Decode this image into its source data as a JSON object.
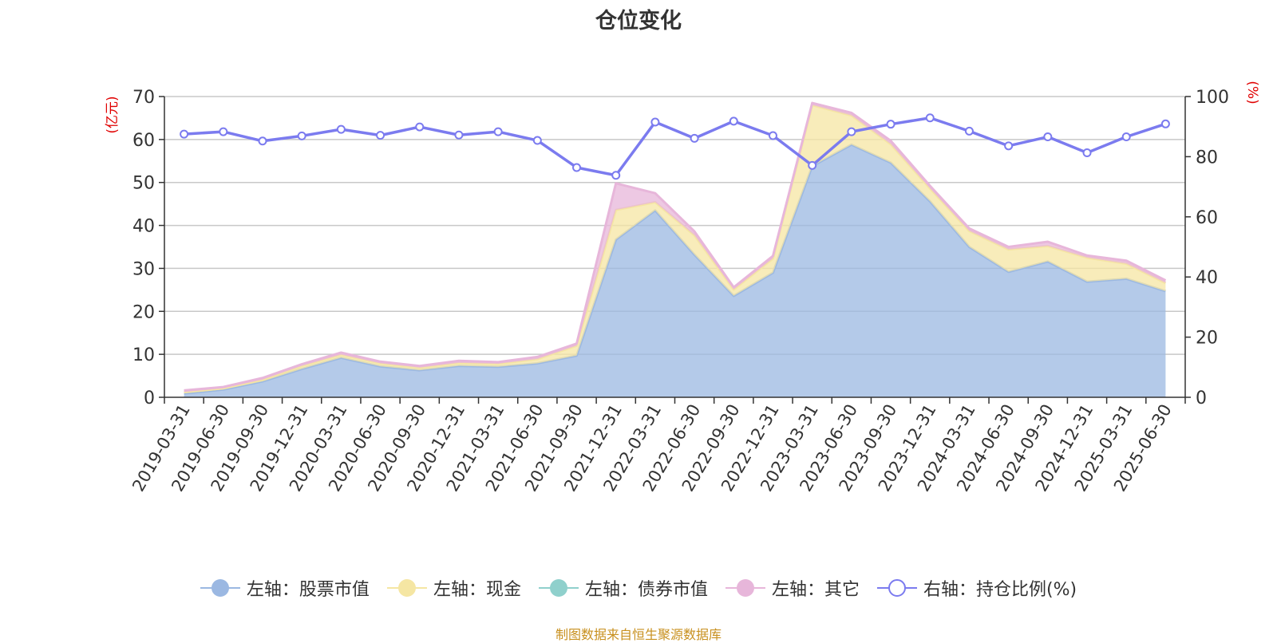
{
  "chart_data": {
    "type": "area",
    "title": "仓位变化",
    "left_axis_unit": "(亿元)",
    "right_axis_unit": "(%)",
    "categories": [
      "2019-03-31",
      "2019-06-30",
      "2019-09-30",
      "2019-12-31",
      "2020-03-31",
      "2020-06-30",
      "2020-09-30",
      "2020-12-31",
      "2021-03-31",
      "2021-06-30",
      "2021-09-30",
      "2021-12-31",
      "2022-03-31",
      "2022-06-30",
      "2022-09-30",
      "2022-12-31",
      "2023-03-31",
      "2023-06-30",
      "2023-09-30",
      "2023-12-31",
      "2024-03-31",
      "2024-06-30",
      "2024-09-30",
      "2024-12-31",
      "2025-03-31",
      "2025-06-30"
    ],
    "left_ylim": [
      0,
      70
    ],
    "left_ticks": [
      0,
      10,
      20,
      30,
      40,
      50,
      60,
      70
    ],
    "right_ylim": [
      0,
      100
    ],
    "right_ticks": [
      0,
      20,
      40,
      60,
      80,
      100
    ],
    "grid": true,
    "legend_position": "bottom",
    "series": [
      {
        "name": "左轴：股票市值",
        "axis": "left",
        "type": "area-stacked",
        "color": "#9bb8e2",
        "values": [
          0.9,
          1.8,
          3.7,
          6.6,
          9.2,
          7.2,
          6.3,
          7.3,
          7.1,
          7.9,
          9.7,
          36.7,
          43.5,
          33.2,
          23.6,
          29.0,
          53.8,
          58.8,
          54.6,
          45.6,
          35.0,
          29.2,
          31.6,
          26.9,
          27.6,
          24.7
        ]
      },
      {
        "name": "左轴：现金",
        "axis": "left",
        "type": "area-stacked",
        "color": "#f5e6a3",
        "values": [
          0.3,
          0.3,
          0.4,
          0.7,
          0.7,
          0.7,
          0.6,
          0.7,
          0.7,
          1.0,
          2.3,
          6.9,
          1.9,
          4.5,
          1.5,
          3.3,
          14.2,
          6.8,
          4.3,
          3.0,
          3.7,
          5.2,
          3.6,
          5.6,
          3.5,
          1.9
        ]
      },
      {
        "name": "左轴：债券市值",
        "axis": "left",
        "type": "area-stacked",
        "color": "#8fd0cc",
        "values": [
          0,
          0,
          0,
          0,
          0,
          0,
          0,
          0,
          0,
          0,
          0,
          0,
          0,
          0,
          0,
          0,
          0,
          0,
          0,
          0,
          0,
          0,
          0,
          0,
          0,
          0
        ]
      },
      {
        "name": "左轴：其它",
        "axis": "left",
        "type": "area-stacked",
        "color": "#e7b6da",
        "values": [
          0.4,
          0.3,
          0.4,
          0.4,
          0.5,
          0.4,
          0.4,
          0.5,
          0.4,
          0.5,
          0.5,
          6.2,
          2.1,
          0.9,
          0.5,
          0.6,
          0.5,
          0.6,
          0.8,
          0.6,
          0.6,
          0.6,
          1.0,
          0.5,
          0.7,
          0.6
        ]
      },
      {
        "name": "右轴：持仓比例(%)",
        "axis": "right",
        "type": "line",
        "color": "#7b7bef",
        "values": [
          87.5,
          88.3,
          85.2,
          86.9,
          89.1,
          87.1,
          89.9,
          87.2,
          88.3,
          85.4,
          76.4,
          73.8,
          91.5,
          86.1,
          91.8,
          87.0,
          77.1,
          88.3,
          90.8,
          92.9,
          88.5,
          83.6,
          86.6,
          81.3,
          86.6,
          90.9
        ]
      }
    ]
  },
  "source_note": "制图数据来自恒生聚源数据库"
}
